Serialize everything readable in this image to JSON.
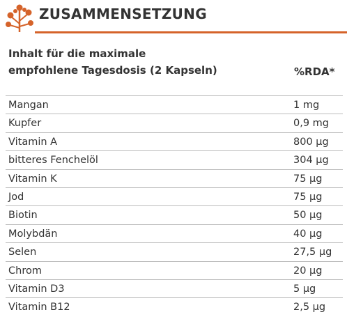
{
  "header": {
    "title": "ZUSAMMENSETZUNG"
  },
  "table": {
    "header": [
      "Inhalt für die maximale",
      "empfohlene Tagesdosis (2 Kapseln)",
      "%RDA*"
    ],
    "rows": [
      [
        "Mangan",
        "1 mg"
      ],
      [
        "Kupfer",
        "0,9 mg"
      ],
      [
        "Vitamin A",
        "800 µg"
      ],
      [
        "bitteres Fenchelöl",
        "304 µg"
      ],
      [
        "Vitamin K",
        "75 µg"
      ],
      [
        "Jod",
        "75 µg"
      ],
      [
        "Biotin",
        "50 µg"
      ],
      [
        "Molybdän",
        "40 µg"
      ],
      [
        "Selen",
        "27,5 µg"
      ],
      [
        "Chrom",
        "20 µg"
      ],
      [
        "Vitamin D3",
        "5 µg"
      ],
      [
        "Vitamin B12",
        "2,5 µg"
      ]
    ]
  }
}
